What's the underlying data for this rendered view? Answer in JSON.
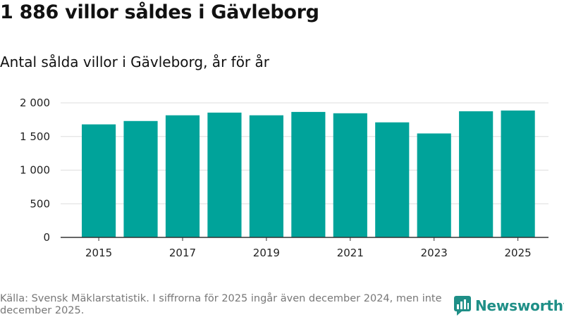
{
  "title": "1 886 villor såldes i Gävleborg",
  "subtitle": "Antal sålda villor i Gävleborg, år för år",
  "source": "Källa: Svensk Mäklarstatistik. I siffrorna för 2025 ingår även december 2024, men inte december 2025.",
  "brand": "Newsworthy",
  "colors": {
    "bar": "#00a39a",
    "brand": "#1f8f87",
    "grid": "#dddddd"
  },
  "chart_data": {
    "type": "bar",
    "title": "1 886 villor såldes i Gävleborg",
    "subtitle": "Antal sålda villor i Gävleborg, år för år",
    "xlabel": "",
    "ylabel": "",
    "categories": [
      "2015",
      "2016",
      "2017",
      "2018",
      "2019",
      "2020",
      "2021",
      "2022",
      "2023",
      "2024",
      "2025"
    ],
    "values": [
      1680,
      1730,
      1815,
      1855,
      1815,
      1865,
      1845,
      1710,
      1545,
      1875,
      1886
    ],
    "ylim": [
      0,
      2000
    ],
    "yticks": [
      0,
      500,
      1000,
      1500,
      2000
    ],
    "ytick_labels": [
      "0",
      "500",
      "1 000",
      "1 500",
      "2 000"
    ],
    "xtick_labels": [
      "2015",
      "2017",
      "2019",
      "2021",
      "2023",
      "2025"
    ],
    "grid": true,
    "legend": "none"
  }
}
